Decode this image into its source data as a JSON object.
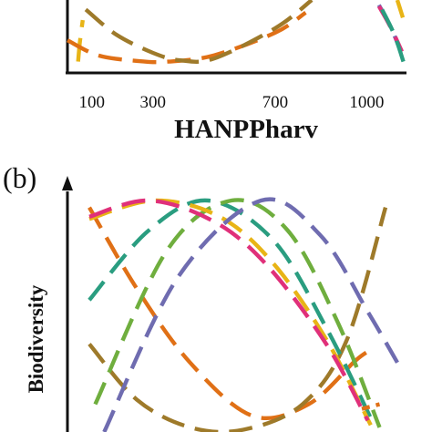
{
  "chart_data": [
    {
      "panel": "(a)",
      "type": "line",
      "xlabel": "HANPPharv",
      "ylabel": "",
      "xticks": [
        100,
        300,
        700,
        1000
      ],
      "xlim": [
        20,
        1130
      ],
      "ylim": [
        0,
        1
      ],
      "grid": false,
      "legend": "none",
      "series": [
        {
          "color": "#E8B416",
          "x": [
            55,
            60,
            70
          ],
          "y": [
            0.02,
            0.3,
            0.68
          ],
          "dash": "long"
        },
        {
          "color": "#E07016",
          "x": [
            20,
            120,
            250,
            350,
            500,
            700,
            800
          ],
          "y": [
            0.36,
            0.12,
            0.03,
            0.02,
            0.12,
            0.48,
            0.8
          ],
          "dash": "long"
        },
        {
          "color": "#9E7A2A",
          "x": [
            80,
            180,
            300,
            390,
            500,
            700,
            820
          ],
          "y": [
            0.85,
            0.45,
            0.16,
            0.04,
            0.07,
            0.55,
            1.0
          ],
          "dash": "long"
        },
        {
          "color": "#6F6CB0",
          "x": [
            1040,
            1080,
            1110
          ],
          "y": [
            0.92,
            0.55,
            0.2
          ],
          "dash": "long"
        },
        {
          "color": "#E0307A",
          "x": [
            1040,
            1080,
            1115
          ],
          "y": [
            0.9,
            0.55,
            0.18
          ],
          "dash": "long"
        },
        {
          "color": "#2A9D80",
          "x": [
            1050,
            1090,
            1120
          ],
          "y": [
            0.85,
            0.45,
            0.02
          ],
          "dash": "long"
        },
        {
          "color": "#E8B416",
          "x": [
            1100,
            1118
          ],
          "y": [
            1.0,
            0.72
          ],
          "dash": "long"
        }
      ]
    },
    {
      "panel": "(b)",
      "type": "line",
      "xlabel": "",
      "ylabel": "Biodiversity",
      "xlim": [
        0,
        1
      ],
      "ylim": [
        0,
        1
      ],
      "grid": false,
      "legend": "none",
      "series": [
        {
          "color": "#E07016",
          "x": [
            0.0,
            0.16,
            0.34,
            0.55,
            0.74,
            0.9,
            0.96
          ],
          "y": [
            0.97,
            0.62,
            0.3,
            0.07,
            0.12,
            0.31,
            0.36
          ],
          "dash": "long"
        },
        {
          "color": "#9E7A2A",
          "x": [
            0.0,
            0.16,
            0.34,
            0.52,
            0.72,
            0.87,
            1.0
          ],
          "y": [
            0.38,
            0.14,
            0.02,
            0.01,
            0.12,
            0.4,
            0.97
          ],
          "dash": "long"
        },
        {
          "color": "#2A9D80",
          "x": [
            0.0,
            0.2,
            0.4,
            0.62,
            0.8,
            0.95
          ],
          "y": [
            0.57,
            0.87,
            1.0,
            0.83,
            0.45,
            0.06
          ],
          "dash": "long"
        },
        {
          "color": "#6FAE3E",
          "x": [
            0.02,
            0.26,
            0.48,
            0.67,
            0.84,
            0.98
          ],
          "y": [
            0.12,
            0.78,
            1.0,
            0.87,
            0.47,
            0.02
          ],
          "dash": "long"
        },
        {
          "color": "#E8B416",
          "x": [
            0.0,
            0.22,
            0.44,
            0.62,
            0.8,
            0.95
          ],
          "y": [
            0.92,
            1.0,
            0.93,
            0.73,
            0.4,
            0.03
          ],
          "dash": "long"
        },
        {
          "color": "#E0307A",
          "x": [
            0.0,
            0.2,
            0.42,
            0.6,
            0.8,
            0.94
          ],
          "y": [
            0.93,
            1.0,
            0.91,
            0.72,
            0.38,
            0.05
          ],
          "dash": "long"
        },
        {
          "color": "#6F6CB0",
          "x": [
            0.05,
            0.3,
            0.58,
            0.78,
            0.94,
            1.04
          ],
          "y": [
            0.0,
            0.67,
            1.0,
            0.85,
            0.52,
            0.3
          ],
          "dash": "long"
        },
        {
          "color": "#E07016",
          "x": [
            0.92,
            0.98
          ],
          "y": [
            0.1,
            0.12
          ],
          "dash": "short"
        }
      ]
    }
  ]
}
